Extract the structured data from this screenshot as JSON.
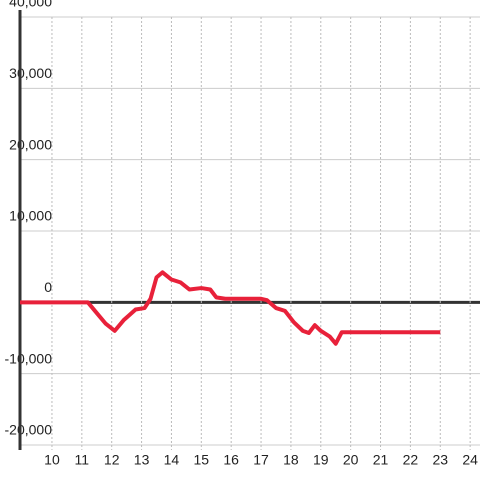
{
  "chart_data": {
    "type": "line",
    "x": [
      8.93,
      11.2,
      11.5,
      11.8,
      12.1,
      12.4,
      12.8,
      13.1,
      13.3,
      13.5,
      13.7,
      14.0,
      14.3,
      14.6,
      15.0,
      15.3,
      15.5,
      15.8,
      16.3,
      17.0,
      17.2,
      17.5,
      17.8,
      18.1,
      18.4,
      18.6,
      18.8,
      19.0,
      19.3,
      19.5,
      19.7,
      19.9,
      23.0
    ],
    "series": [
      {
        "color": "#e8213a",
        "values": [
          0,
          0,
          -1500,
          -3000,
          -4000,
          -2500,
          -1000,
          -800,
          500,
          3500,
          4200,
          3200,
          2800,
          1800,
          2000,
          1800,
          700,
          500,
          500,
          500,
          300,
          -800,
          -1200,
          -2800,
          -4000,
          -4300,
          -3200,
          -4000,
          -4800,
          -5800,
          -4200,
          -4200,
          -4200
        ]
      }
    ],
    "xlim": [
      8.93,
      24.33
    ],
    "xticks": [
      10,
      11,
      12,
      13,
      14,
      15,
      16,
      17,
      18,
      19,
      20,
      21,
      22,
      23,
      24
    ],
    "ylim": [
      -20000,
      40000
    ],
    "yticks": [
      {
        "value": -20000,
        "label": "-20,000"
      },
      {
        "value": -10000,
        "label": "-10,000"
      },
      0,
      {
        "value": 10000,
        "label": "10,000"
      },
      {
        "value": 20000,
        "label": "20,000"
      },
      {
        "value": 30000,
        "label": "30,000"
      },
      {
        "value": 40000,
        "label": "40,000"
      }
    ],
    "grid": true
  }
}
